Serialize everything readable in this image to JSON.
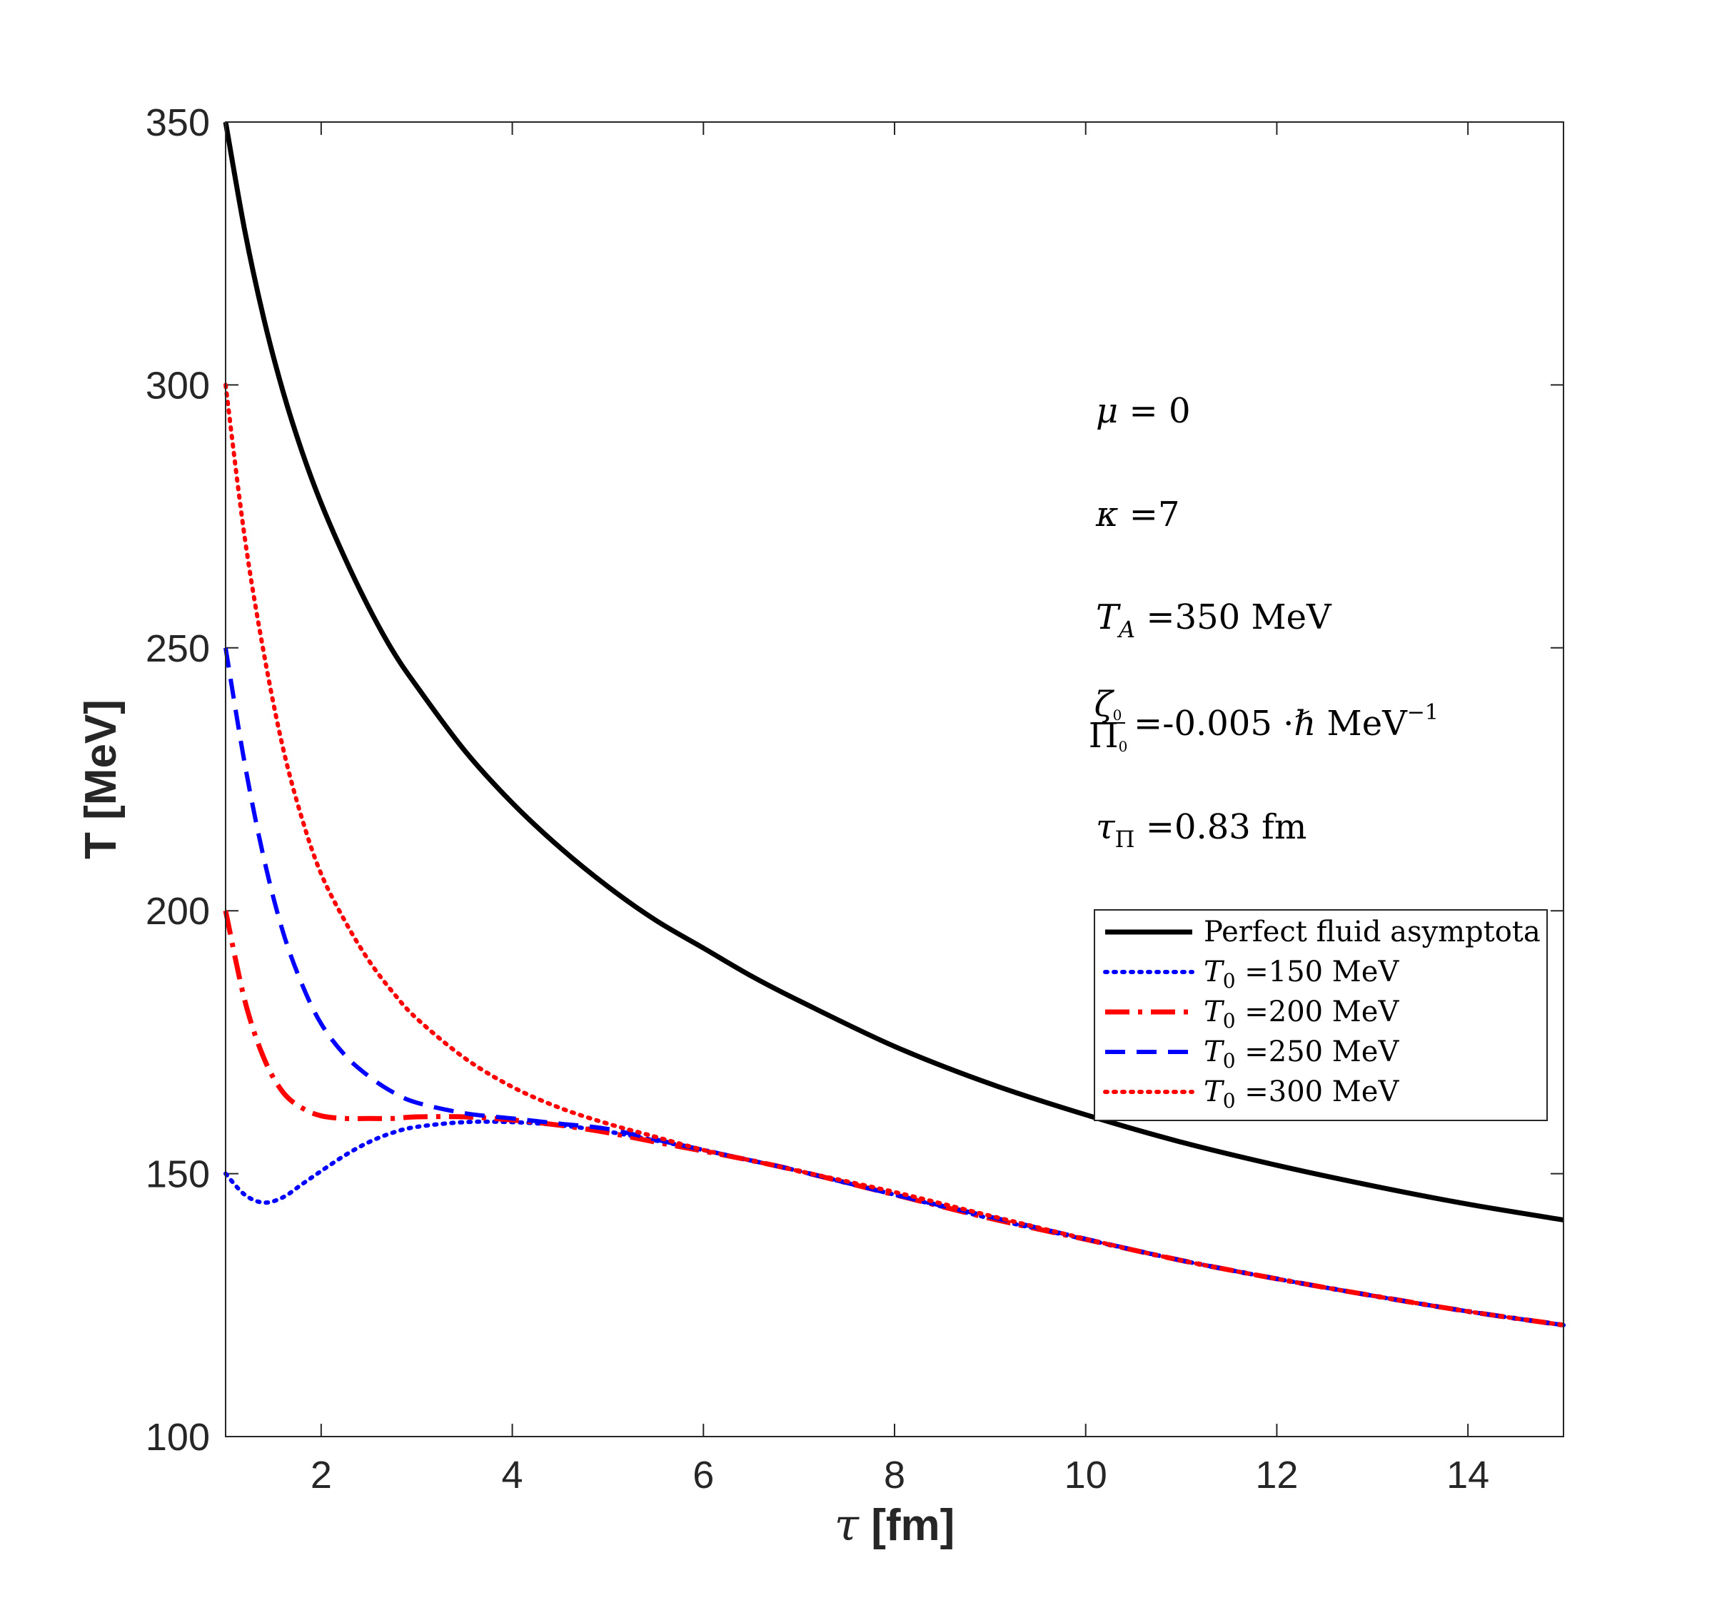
{
  "chart_data": {
    "type": "line",
    "title": "",
    "xlabel_symbol": "τ",
    "xlabel": " [fm]",
    "ylabel": "T [MeV]",
    "xlim": [
      1,
      15
    ],
    "ylim": [
      100,
      350
    ],
    "xticks": [
      2,
      4,
      6,
      8,
      10,
      12,
      14
    ],
    "yticks": [
      100,
      150,
      200,
      250,
      300,
      350
    ],
    "legend_position": "right-middle",
    "colors": {
      "black": "#000000",
      "red": "#ff0000",
      "blue": "#0000ff",
      "axis": "#262626"
    },
    "x": [
      1.0,
      1.2,
      1.4,
      1.6,
      1.8,
      2.0,
      2.25,
      2.5,
      2.75,
      3.0,
      3.5,
      4.0,
      4.5,
      5.0,
      5.5,
      6.0,
      6.5,
      7.0,
      8.0,
      9.0,
      10.0,
      11.0,
      12.0,
      13.0,
      14.0,
      15.0
    ],
    "series": [
      {
        "name": "Perfect fluid asymptota",
        "color": "#000000",
        "style": "solid",
        "values": [
          350,
          329.4,
          312.6,
          298.8,
          287.3,
          277.5,
          267.0,
          257.6,
          249.4,
          242.7,
          230.5,
          220.5,
          212.0,
          204.6,
          198.2,
          192.9,
          187.6,
          182.9,
          174.2,
          167.1,
          161.2,
          156.0,
          151.6,
          147.7,
          144.2,
          141.2
        ]
      },
      {
        "name": "T0 =150 MeV",
        "label_var": "T",
        "label_sub": "0",
        "label_rest": " =150 MeV",
        "color": "#0000ff",
        "style": "dotted",
        "values": [
          150,
          146,
          144.5,
          145.5,
          148,
          150.5,
          153.5,
          156,
          157.8,
          158.9,
          159.8,
          159.8,
          159.2,
          158.0,
          156.3,
          154.5,
          152.5,
          150.5,
          146.0,
          141.5,
          137.5,
          133.5,
          130.0,
          126.8,
          123.8,
          121.2
        ]
      },
      {
        "name": "T0 =200 MeV",
        "label_var": "T",
        "label_sub": "0",
        "label_rest": " =200 MeV",
        "color": "#ff0000",
        "style": "dashdot",
        "values": [
          200,
          183,
          172,
          165.5,
          162.5,
          161,
          160.5,
          160.5,
          160.5,
          160.8,
          160.8,
          160.2,
          159.2,
          157.8,
          156.0,
          154.3,
          152.5,
          150.5,
          146.0,
          141.5,
          137.5,
          133.5,
          130.0,
          126.8,
          123.8,
          121.2
        ]
      },
      {
        "name": "T0 =250 MeV",
        "label_var": "T",
        "label_sub": "0",
        "label_rest": " =250 MeV",
        "color": "#0000ff",
        "style": "dashed",
        "values": [
          250,
          228,
          210,
          196,
          186,
          178.5,
          172.5,
          168.5,
          165.5,
          163.5,
          161.5,
          160.5,
          159.5,
          158.5,
          156.5,
          154.5,
          152.5,
          150.5,
          146.0,
          141.8,
          137.6,
          133.5,
          130.0,
          126.8,
          123.8,
          121.2
        ]
      },
      {
        "name": "T0 =300 MeV",
        "label_var": "T",
        "label_sub": "0",
        "label_rest": " =300 MeV",
        "color": "#ff0000",
        "style": "dotted",
        "values": [
          300,
          271,
          249,
          231,
          217.5,
          207,
          198,
          190.5,
          184.5,
          179.5,
          172,
          166.5,
          162.5,
          159.5,
          157,
          154.5,
          152.5,
          150.5,
          146.5,
          142,
          137.6,
          133.5,
          130.0,
          126.8,
          123.8,
          121.2
        ]
      }
    ],
    "annotations": {
      "mu": {
        "var": "μ",
        "rest": " = 0"
      },
      "kappa": {
        "var": "κ",
        "rest": " =7"
      },
      "ta": {
        "var": "T",
        "sub": "A",
        "rest": " =350 MeV"
      },
      "zeta": {
        "num": "ζ",
        "num_sub": "0",
        "den": "Π",
        "den_sub": "0",
        "rest": " =-0.005 ·",
        "hbar": "ℏ",
        "unit": " MeV",
        "sup": "−1"
      },
      "tau": {
        "var": "τ",
        "sub": "Π",
        "rest": " =0.83 fm"
      }
    }
  }
}
